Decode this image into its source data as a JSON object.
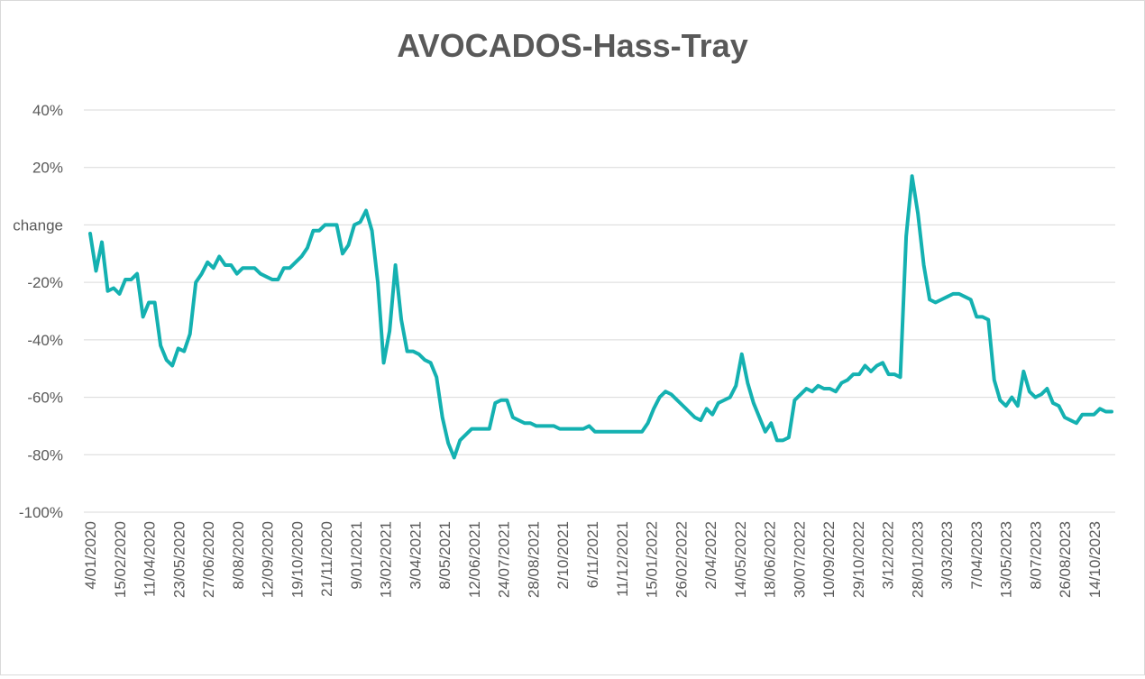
{
  "chart_data": {
    "type": "line",
    "title": "AVOCADOS-Hass-Tray",
    "ylabel": "",
    "xlabel": "",
    "ylim": [
      -100,
      40
    ],
    "y_ticks": [
      40,
      20,
      0,
      -20,
      -40,
      -60,
      -80,
      -100
    ],
    "y_tick_labels": [
      "40%",
      "20%",
      "change",
      "-20%",
      "-40%",
      "-60%",
      "-80%",
      "-100%"
    ],
    "x_tick_labels": [
      "4/01/2020",
      "15/02/2020",
      "11/04/2020",
      "23/05/2020",
      "27/06/2020",
      "8/08/2020",
      "12/09/2020",
      "19/10/2020",
      "21/11/2020",
      "9/01/2021",
      "13/02/2021",
      "3/04/2021",
      "8/05/2021",
      "12/06/2021",
      "24/07/2021",
      "28/08/2021",
      "2/10/2021",
      "6/11/2021",
      "11/12/2021",
      "15/01/2022",
      "26/02/2022",
      "2/04/2022",
      "14/05/2022",
      "18/06/2022",
      "30/07/2022",
      "10/09/2022",
      "29/10/2022",
      "3/12/2022",
      "28/01/2023",
      "3/03/2023",
      "7/04/2023",
      "13/05/2023",
      "8/07/2023",
      "26/08/2023",
      "14/10/2023"
    ],
    "grid": true,
    "legend": "none",
    "line_color": "#14b1b1",
    "series": [
      {
        "values": [
          -3,
          -16,
          -6,
          -23,
          -22,
          -24,
          -19,
          -19,
          -17,
          -32,
          -27,
          -27,
          -42,
          -47,
          -49,
          -43,
          -44,
          -38,
          -20,
          -17,
          -13,
          -15,
          -11,
          -14,
          -14,
          -17,
          -15,
          -15,
          -15,
          -17,
          -18,
          -19,
          -19,
          -15,
          -15,
          -13,
          -11,
          -8,
          -2,
          -2,
          0,
          0,
          0,
          -10,
          -7,
          0,
          1,
          5,
          -2,
          -20,
          -48,
          -37,
          -14,
          -33,
          -44,
          -44,
          -45,
          -47,
          -48,
          -53,
          -67,
          -76,
          -81,
          -75,
          -73,
          -71,
          -71,
          -71,
          -71,
          -62,
          -61,
          -61,
          -67,
          -68,
          -69,
          -69,
          -70,
          -70,
          -70,
          -70,
          -71,
          -71,
          -71,
          -71,
          -71,
          -70,
          -72,
          -72,
          -72,
          -72,
          -72,
          -72,
          -72,
          -72,
          -72,
          -69,
          -64,
          -60,
          -58,
          -59,
          -61,
          -63,
          -65,
          -67,
          -68,
          -64,
          -66,
          -62,
          -61,
          -60,
          -56,
          -45,
          -55,
          -62,
          -67,
          -72,
          -69,
          -75,
          -75,
          -74,
          -61,
          -59,
          -57,
          -58,
          -56,
          -57,
          -57,
          -58,
          -55,
          -54,
          -52,
          -52,
          -49,
          -51,
          -49,
          -48,
          -52,
          -52,
          -53,
          -4,
          17,
          4,
          -14,
          -26,
          -27,
          -26,
          -25,
          -24,
          -24,
          -25,
          -26,
          -32,
          -32,
          -33,
          -54,
          -61,
          -63,
          -60,
          -63,
          -51,
          -58,
          -60,
          -59,
          -57,
          -62,
          -63,
          -67,
          -68,
          -69,
          -66,
          -66,
          -66,
          -64,
          -65,
          -65
        ]
      }
    ]
  }
}
